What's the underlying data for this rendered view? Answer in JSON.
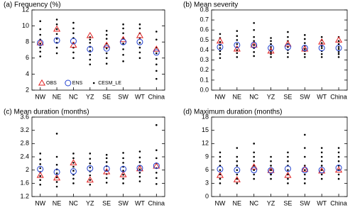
{
  "chart_data": [
    {
      "type": "dot",
      "title": "(a) Frequency (%)",
      "categories": [
        "NW",
        "NE",
        "NC",
        "YZ",
        "SE",
        "SW",
        "WT",
        "China"
      ],
      "ylim": [
        2,
        12
      ],
      "yticks": [
        2,
        4,
        6,
        8,
        10,
        12
      ],
      "legend": "lower center",
      "series": [
        {
          "name": "CESM_LE",
          "marker": "dot",
          "color": "#000000",
          "values": [
            [
              6.2,
              6.8,
              7.3,
              7.8,
              8.3,
              8.9,
              9.6,
              10.6
            ],
            [
              6.6,
              7.3,
              7.9,
              8.4,
              9.0,
              9.6,
              10.2,
              10.8
            ],
            [
              6.0,
              6.7,
              7.3,
              7.9,
              8.5,
              9.1,
              9.7,
              10.4
            ],
            [
              5.2,
              5.8,
              6.4,
              6.9,
              7.4,
              7.9,
              8.3,
              8.6
            ],
            [
              5.3,
              6.0,
              6.6,
              7.2,
              7.8,
              8.4,
              8.9,
              9.4
            ],
            [
              5.6,
              6.4,
              7.1,
              7.8,
              8.5,
              9.1,
              9.7,
              10.2
            ],
            [
              6.0,
              6.7,
              7.3,
              7.9,
              8.5,
              9.1,
              9.7,
              10.2
            ],
            [
              3.4,
              4.4,
              5.2,
              5.9,
              6.6,
              7.3,
              8.3,
              9.3
            ]
          ]
        },
        {
          "name": "OBS",
          "marker": "triangle",
          "color": "#e02020",
          "values": [
            7.9,
            9.6,
            7.6,
            8.8,
            7.6,
            8.3,
            8.8,
            7.1
          ]
        },
        {
          "name": "ENS",
          "marker": "circle",
          "color": "#2040d0",
          "values": [
            7.9,
            8.2,
            8.1,
            7.1,
            7.2,
            8.0,
            8.0,
            6.7
          ]
        }
      ]
    },
    {
      "type": "dot",
      "title": "(b) Mean severity",
      "categories": [
        "NW",
        "NE",
        "NC",
        "YZ",
        "SE",
        "SW",
        "WT",
        "China"
      ],
      "ylim": [
        0,
        0.8
      ],
      "yticks": [
        {
          "value": 0,
          "label": "0.0"
        },
        0.1,
        0.2,
        0.3,
        0.4,
        0.5,
        0.6,
        0.7,
        0.8
      ],
      "series": [
        {
          "marker": "dot",
          "color": "#000000",
          "values": [
            [
              0.32,
              0.36,
              0.39,
              0.42,
              0.45,
              0.48,
              0.52,
              0.56
            ],
            [
              0.33,
              0.37,
              0.4,
              0.43,
              0.46,
              0.5,
              0.54,
              0.59
            ],
            [
              0.34,
              0.38,
              0.42,
              0.45,
              0.49,
              0.53,
              0.6,
              0.67
            ],
            [
              0.33,
              0.36,
              0.38,
              0.41,
              0.43,
              0.46,
              0.49,
              0.52
            ],
            [
              0.33,
              0.37,
              0.4,
              0.43,
              0.46,
              0.49,
              0.53,
              0.58
            ],
            [
              0.33,
              0.36,
              0.39,
              0.41,
              0.44,
              0.47,
              0.51,
              0.55
            ],
            [
              0.33,
              0.36,
              0.39,
              0.42,
              0.44,
              0.47,
              0.5,
              0.53
            ],
            [
              0.33,
              0.36,
              0.38,
              0.41,
              0.43,
              0.46,
              0.49,
              0.53
            ]
          ]
        },
        {
          "marker": "triangle",
          "color": "#e02020",
          "values": [
            0.49,
            0.41,
            0.45,
            0.39,
            0.46,
            0.41,
            0.48,
            0.5
          ]
        },
        {
          "marker": "circle",
          "color": "#2040d0",
          "values": [
            0.43,
            0.45,
            0.45,
            0.42,
            0.43,
            0.42,
            0.42,
            0.42
          ]
        }
      ]
    },
    {
      "type": "dot",
      "title": "(c) Mean duration (months)",
      "categories": [
        "NW",
        "NE",
        "NC",
        "YZ",
        "SE",
        "SW",
        "WT",
        "China"
      ],
      "ylim": [
        1.2,
        3.6
      ],
      "yticks": [
        1.2,
        1.6,
        2,
        2.4,
        2.8,
        3.2,
        3.6
      ],
      "series": [
        {
          "marker": "dot",
          "color": "#000000",
          "values": [
            [
              1.56,
              1.7,
              1.82,
              1.94,
              2.06,
              2.18,
              2.32,
              2.5
            ],
            [
              1.5,
              1.64,
              1.78,
              1.9,
              2.02,
              2.16,
              2.4,
              3.1
            ],
            [
              1.6,
              1.74,
              1.86,
              1.98,
              2.1,
              2.22,
              2.36,
              2.5
            ],
            [
              1.56,
              1.7,
              1.84,
              1.96,
              2.08,
              2.2,
              2.34,
              2.5
            ],
            [
              1.62,
              1.76,
              1.88,
              2.0,
              2.12,
              2.24,
              2.36,
              2.46
            ],
            [
              1.6,
              1.74,
              1.86,
              1.98,
              2.1,
              2.22,
              2.36,
              2.52
            ],
            [
              1.66,
              1.8,
              1.92,
              2.02,
              2.12,
              2.24,
              2.38,
              2.56
            ],
            [
              1.58,
              1.76,
              1.92,
              2.06,
              2.2,
              2.36,
              2.6,
              3.36
            ]
          ]
        },
        {
          "marker": "triangle",
          "color": "#e02020",
          "values": [
            1.84,
            1.76,
            2.22,
            1.7,
            1.95,
            1.86,
            2.04,
            2.12
          ]
        },
        {
          "marker": "circle",
          "color": "#2040d0",
          "values": [
            2.03,
            1.94,
            1.96,
            2.05,
            2.04,
            2.03,
            2.06,
            2.13
          ]
        }
      ]
    },
    {
      "type": "dot",
      "title": "(d) Maximum duration (months)",
      "categories": [
        "NW",
        "NE",
        "NC",
        "YZ",
        "SE",
        "SW",
        "WT",
        "China"
      ],
      "ylim": [
        0,
        18
      ],
      "yticks": [
        0,
        3,
        6,
        9,
        12,
        15,
        18
      ],
      "series": [
        {
          "marker": "dot",
          "color": "#000000",
          "values": [
            [
              3,
              4,
              5,
              6,
              7,
              8,
              9,
              10
            ],
            [
              3,
              4,
              5,
              6,
              7,
              8,
              9,
              11
            ],
            [
              4,
              5,
              6,
              7,
              8,
              9,
              10,
              12
            ],
            [
              4,
              5,
              5,
              6,
              6,
              7,
              8,
              9
            ],
            [
              3,
              4,
              5,
              6,
              7,
              8,
              9,
              10
            ],
            [
              3,
              4,
              5,
              6,
              7,
              9,
              11,
              14
            ],
            [
              4,
              5,
              6,
              7,
              8,
              9,
              10,
              11
            ],
            [
              4,
              5,
              6,
              7,
              8,
              9,
              10,
              11
            ]
          ]
        },
        {
          "marker": "triangle",
          "color": "#e02020",
          "values": [
            4.8,
            3.8,
            6.7,
            5.9,
            4.8,
            6.2,
            5.8,
            6.0
          ]
        },
        {
          "marker": "circle",
          "color": "#2040d0",
          "values": [
            6.2,
            6.0,
            6.0,
            5.9,
            6.3,
            6.0,
            6.0,
            6.5
          ]
        }
      ]
    }
  ]
}
